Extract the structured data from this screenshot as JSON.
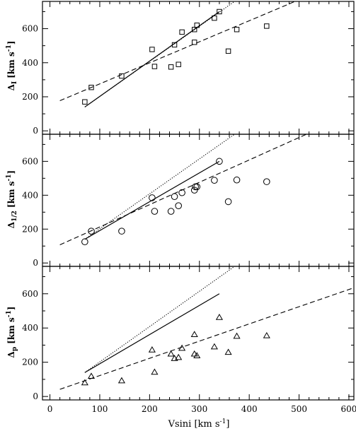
{
  "chart_data": [
    {
      "type": "scatter",
      "ylabel": "Δ_I [km s^-1]",
      "ylabel_text": {
        "main": "Δ",
        "sub": "I",
        "units": "[km s",
        "exp": "-1",
        "close": "]"
      },
      "marker": "square",
      "ylim": [
        -20,
        760
      ],
      "yticks": [
        0,
        200,
        400,
        600
      ],
      "points": [
        {
          "x": 70,
          "y": 170
        },
        {
          "x": 83,
          "y": 255
        },
        {
          "x": 144,
          "y": 322
        },
        {
          "x": 205,
          "y": 478
        },
        {
          "x": 210,
          "y": 378
        },
        {
          "x": 243,
          "y": 375
        },
        {
          "x": 250,
          "y": 505
        },
        {
          "x": 258,
          "y": 390
        },
        {
          "x": 265,
          "y": 580
        },
        {
          "x": 290,
          "y": 520
        },
        {
          "x": 290,
          "y": 595
        },
        {
          "x": 295,
          "y": 620
        },
        {
          "x": 330,
          "y": 662
        },
        {
          "x": 340,
          "y": 700
        },
        {
          "x": 358,
          "y": 468
        },
        {
          "x": 375,
          "y": 595
        },
        {
          "x": 435,
          "y": 615
        }
      ],
      "dashed_fit": {
        "x": [
          20,
          500
        ],
        "y": [
          177,
          770
        ]
      },
      "solid_line": {
        "x": [
          70,
          340
        ],
        "y": [
          140,
          700
        ]
      },
      "dotted_line": {
        "x": [
          70,
          390
        ],
        "y": [
          140,
          800
        ]
      }
    },
    {
      "type": "scatter",
      "ylabel": "Δ_1/2 [km s^-1]",
      "ylabel_text": {
        "main": "Δ",
        "sub": "1/2",
        "units": "[km s",
        "exp": "-1",
        "close": "]"
      },
      "marker": "circle",
      "ylim": [
        -20,
        760
      ],
      "yticks": [
        0,
        200,
        400,
        600
      ],
      "points": [
        {
          "x": 70,
          "y": 125
        },
        {
          "x": 83,
          "y": 188
        },
        {
          "x": 144,
          "y": 188
        },
        {
          "x": 205,
          "y": 385
        },
        {
          "x": 210,
          "y": 305
        },
        {
          "x": 243,
          "y": 305
        },
        {
          "x": 250,
          "y": 392
        },
        {
          "x": 258,
          "y": 338
        },
        {
          "x": 265,
          "y": 415
        },
        {
          "x": 290,
          "y": 430
        },
        {
          "x": 292,
          "y": 450
        },
        {
          "x": 295,
          "y": 450
        },
        {
          "x": 330,
          "y": 488
        },
        {
          "x": 340,
          "y": 600
        },
        {
          "x": 358,
          "y": 362
        },
        {
          "x": 375,
          "y": 490
        },
        {
          "x": 435,
          "y": 480
        }
      ],
      "dashed_fit": {
        "x": [
          20,
          530
        ],
        "y": [
          107,
          780
        ]
      },
      "solid_line": {
        "x": [
          70,
          340
        ],
        "y": [
          140,
          600
        ]
      },
      "dotted_line": {
        "x": [
          70,
          390
        ],
        "y": [
          140,
          800
        ]
      }
    },
    {
      "type": "scatter",
      "ylabel": "Δ_p [km s^-1]",
      "ylabel_text": {
        "main": "Δ",
        "sub": "p",
        "units": "[km s",
        "exp": "-1",
        "close": "]"
      },
      "marker": "triangle",
      "xlabel": "Vsini [km s^-1]",
      "xlabel_text": {
        "main": "Vsini [km s",
        "exp": "-1",
        "close": "]"
      },
      "xlim": [
        -15,
        610
      ],
      "xticks": [
        0,
        100,
        200,
        300,
        400,
        500,
        600
      ],
      "ylim": [
        -20,
        760
      ],
      "yticks": [
        0,
        200,
        400,
        600
      ],
      "points": [
        {
          "x": 70,
          "y": 80
        },
        {
          "x": 83,
          "y": 118
        },
        {
          "x": 144,
          "y": 92
        },
        {
          "x": 205,
          "y": 272
        },
        {
          "x": 210,
          "y": 142
        },
        {
          "x": 243,
          "y": 248
        },
        {
          "x": 250,
          "y": 222
        },
        {
          "x": 258,
          "y": 228
        },
        {
          "x": 265,
          "y": 282
        },
        {
          "x": 290,
          "y": 362
        },
        {
          "x": 290,
          "y": 248
        },
        {
          "x": 295,
          "y": 238
        },
        {
          "x": 330,
          "y": 290
        },
        {
          "x": 340,
          "y": 462
        },
        {
          "x": 358,
          "y": 258
        },
        {
          "x": 375,
          "y": 352
        },
        {
          "x": 435,
          "y": 355
        }
      ],
      "dashed_fit": {
        "x": [
          20,
          610
        ],
        "y": [
          42,
          635
        ]
      },
      "solid_line": {
        "x": [
          70,
          340
        ],
        "y": [
          140,
          600
        ]
      },
      "dotted_line": {
        "x": [
          70,
          390
        ],
        "y": [
          140,
          800
        ]
      }
    }
  ]
}
